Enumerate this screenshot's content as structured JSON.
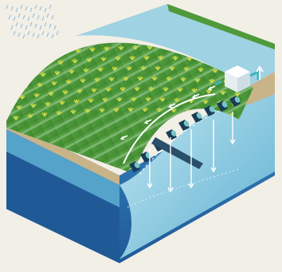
{
  "colors": {
    "background": "#f2efe6",
    "field_top": "#4f9a3a",
    "field_row": "#3c7f2c",
    "field_strip": "#9fc99a",
    "crop": "#c8d84a",
    "block_side_dark": "#1f5a97",
    "block_front": "#2f74b5",
    "water_light": "#9fd2e2",
    "water_mid": "#5fb0d2",
    "soil_edge": "#c9b48a",
    "pipe": "#1a3c55",
    "pipe_cap": "#78c5c7",
    "pump": "#ffffff",
    "arrow": "#ffffff",
    "rain": "#8ab4d8"
  },
  "icons": {
    "rain": "rain-icon",
    "pump": "pump-icon",
    "arrow": "flow-arrow-icon"
  }
}
